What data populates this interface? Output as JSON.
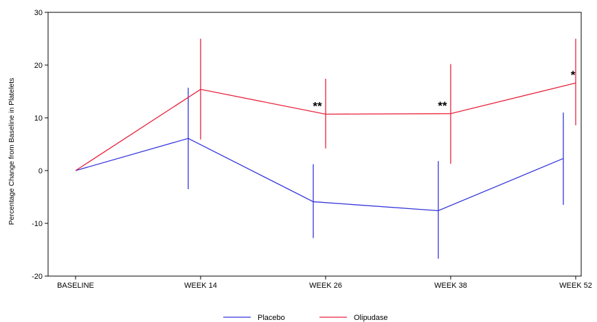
{
  "chart_data": {
    "type": "line",
    "title": "",
    "xlabel": "",
    "ylabel": "Percentage Change from Baseline in Platelets",
    "categories": [
      "BASELINE",
      "WEEK 14",
      "WEEK 26",
      "WEEK 38",
      "WEEK 52"
    ],
    "ylim": [
      -20,
      30
    ],
    "yticks": [
      -20,
      -10,
      0,
      10,
      20,
      30
    ],
    "grid": false,
    "legend_position": "bottom",
    "series": [
      {
        "name": "Placebo",
        "color": "#3333dd",
        "values": [
          0,
          6.1,
          -5.9,
          -7.6,
          2.3
        ],
        "error_low": [
          null,
          -3.5,
          -12.8,
          -16.7,
          -6.5
        ],
        "error_high": [
          null,
          15.7,
          1.2,
          1.8,
          11.0
        ]
      },
      {
        "name": "Olipudase",
        "color": "#e8203a",
        "values": [
          0,
          15.4,
          10.7,
          10.8,
          16.6
        ],
        "error_low": [
          null,
          5.9,
          4.2,
          1.3,
          8.6
        ],
        "error_high": [
          null,
          25.0,
          17.4,
          20.2,
          25.0
        ]
      }
    ],
    "annotations": [
      {
        "category": "WEEK 26",
        "y": 10.7,
        "text": "**"
      },
      {
        "category": "WEEK 38",
        "y": 10.8,
        "text": "**"
      },
      {
        "category": "WEEK 52",
        "y": 16.6,
        "text": "*"
      }
    ]
  }
}
